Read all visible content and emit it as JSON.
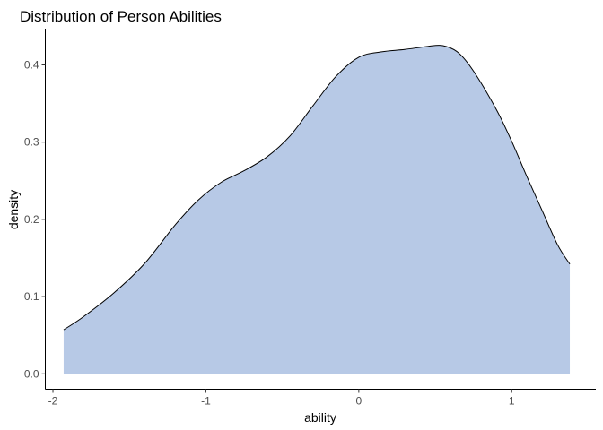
{
  "chart_data": {
    "type": "area",
    "title": "Distribution of Person Abilities",
    "xlabel": "ability",
    "ylabel": "density",
    "xlim": [
      -2.05,
      1.55
    ],
    "ylim": [
      -0.02,
      0.447
    ],
    "x_ticks": [
      -2,
      -1,
      0,
      1
    ],
    "x_tick_labels": [
      "-2",
      "-1",
      "0",
      "1"
    ],
    "y_ticks": [
      0.0,
      0.1,
      0.2,
      0.3,
      0.4
    ],
    "y_tick_labels": [
      "0.0",
      "0.1",
      "0.2",
      "0.3",
      "0.4"
    ],
    "grid": false,
    "colors": {
      "fill": "#b7c9e6",
      "line": "#000000",
      "axis": "#000000"
    },
    "series": [
      {
        "x": [
          -1.93,
          -1.8,
          -1.6,
          -1.4,
          -1.2,
          -1.05,
          -0.9,
          -0.75,
          -0.6,
          -0.45,
          -0.3,
          -0.15,
          0.0,
          0.15,
          0.3,
          0.45,
          0.55,
          0.65,
          0.75,
          0.9,
          1.0,
          1.1,
          1.2,
          1.3,
          1.38
        ],
        "y": [
          0.057,
          0.074,
          0.105,
          0.143,
          0.193,
          0.225,
          0.248,
          0.263,
          0.281,
          0.308,
          0.347,
          0.385,
          0.41,
          0.417,
          0.42,
          0.424,
          0.425,
          0.416,
          0.392,
          0.342,
          0.301,
          0.255,
          0.211,
          0.167,
          0.142
        ]
      }
    ]
  }
}
